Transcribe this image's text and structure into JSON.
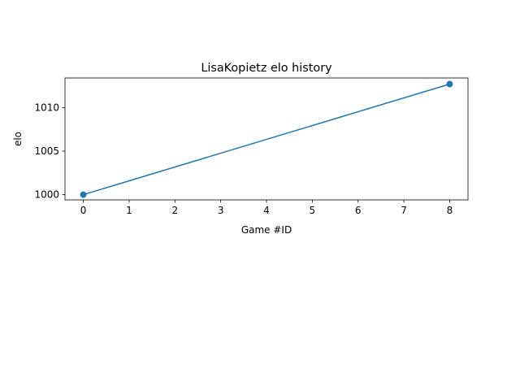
{
  "chart_data": {
    "type": "line",
    "title": "LisaKopietz elo history",
    "xlabel": "Game #ID",
    "ylabel": "elo",
    "x": [
      0,
      8
    ],
    "series": [
      {
        "values": [
          1000,
          1012.7
        ],
        "color": "#1f77b4",
        "marker": "circle"
      }
    ],
    "xlim": [
      -0.4,
      8.4
    ],
    "ylim": [
      999.4,
      1013.4
    ],
    "xticks": [
      0,
      1,
      2,
      3,
      4,
      5,
      6,
      7,
      8
    ],
    "yticks": [
      1000,
      1005,
      1010
    ],
    "grid": false,
    "legend": false
  }
}
